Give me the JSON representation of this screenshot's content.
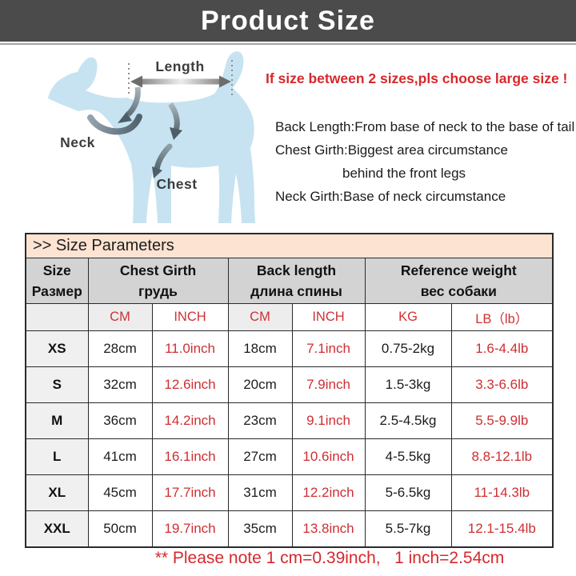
{
  "title": "Product Size",
  "diagram": {
    "labels": {
      "length": "Length",
      "neck": "Neck",
      "chest": "Chest"
    },
    "dog_color": "#c7e3f1"
  },
  "notes": {
    "size_tip": "If size between 2 sizes,pls choose large size !",
    "back_length": "Back Length:From base of neck to the base of tail",
    "chest_girth_1": "Chest Girth:Biggest area circumstance",
    "chest_girth_2": "behind the front legs",
    "neck_girth": "Neck Girth:Base of neck circumstance",
    "footnote": "** Please note 1 cm=0.39inch,   1 inch=2.54cm"
  },
  "table": {
    "section_title": ">> Size Parameters",
    "headers": {
      "size_en": "Size",
      "size_ru": "Размер",
      "chest_en": "Chest Girth",
      "chest_ru": "грудь",
      "back_en": "Back length",
      "back_ru": "длина спины",
      "weight_en": "Reference weight",
      "weight_ru": "вес собаки"
    },
    "units": {
      "cm1": "CM",
      "inch1": "INCH",
      "cm2": "CM",
      "inch2": "INCH",
      "kg": "KG",
      "lb": "LB（lb）"
    },
    "rows": [
      {
        "size": "XS",
        "chest_cm": "28cm",
        "chest_inch": "11.0inch",
        "back_cm": "18cm",
        "back_inch": "7.1inch",
        "kg": "0.75-2kg",
        "lb": "1.6-4.4lb"
      },
      {
        "size": "S",
        "chest_cm": "32cm",
        "chest_inch": "12.6inch",
        "back_cm": "20cm",
        "back_inch": "7.9inch",
        "kg": "1.5-3kg",
        "lb": "3.3-6.6lb"
      },
      {
        "size": "M",
        "chest_cm": "36cm",
        "chest_inch": "14.2inch",
        "back_cm": "23cm",
        "back_inch": "9.1inch",
        "kg": "2.5-4.5kg",
        "lb": "5.5-9.9lb"
      },
      {
        "size": "L",
        "chest_cm": "41cm",
        "chest_inch": "16.1inch",
        "back_cm": "27cm",
        "back_inch": "10.6inch",
        "kg": "4-5.5kg",
        "lb": "8.8-12.1lb"
      },
      {
        "size": "XL",
        "chest_cm": "45cm",
        "chest_inch": "17.7inch",
        "back_cm": "31cm",
        "back_inch": "12.2inch",
        "kg": "5-6.5kg",
        "lb": "11-14.3lb"
      },
      {
        "size": "XXL",
        "chest_cm": "50cm",
        "chest_inch": "19.7inch",
        "back_cm": "35cm",
        "back_inch": "13.8inch",
        "kg": "5.5-7kg",
        "lb": "12.1-15.4lb"
      }
    ]
  },
  "colors": {
    "title_bar_bg": "#4b4b4b",
    "accent_red": "#d5292d",
    "table_red": "#cd2f33",
    "section_bg": "#fce3d2",
    "header_bg": "#d3d3d3",
    "shade_bg": "#ededed",
    "dog_blue": "#c7e3f1"
  }
}
